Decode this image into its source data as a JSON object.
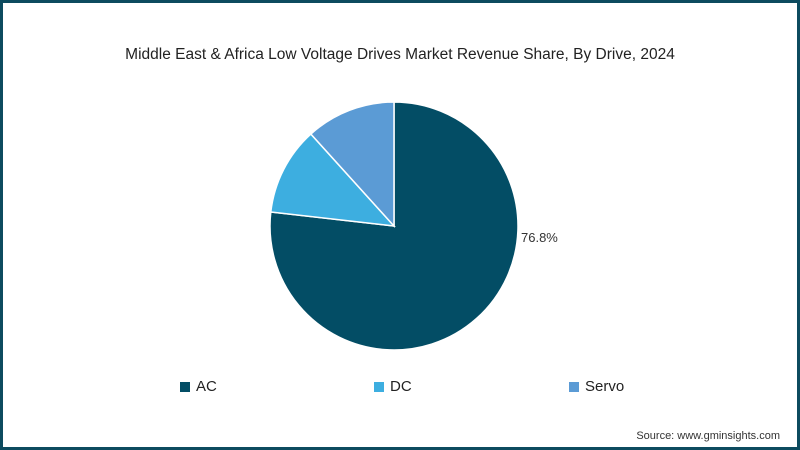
{
  "chart_data": {
    "type": "pie",
    "title": "Middle East & Africa Low Voltage Drives Market Revenue Share, By Drive, 2024",
    "categories": [
      "AC",
      "DC",
      "Servo"
    ],
    "values": [
      76.8,
      11.5,
      11.7
    ],
    "colors": [
      "#034d65",
      "#3daee0",
      "#5b9bd5"
    ],
    "data_labels": {
      "AC": "76.8%"
    },
    "legend_position": "bottom",
    "source": "Source: www.gminsights.com"
  },
  "title": "Middle East & Africa Low Voltage Drives Market Revenue Share, By Drive, 2024",
  "label_ac": "76.8%",
  "legend": [
    {
      "label": "AC",
      "color": "#034d65"
    },
    {
      "label": "DC",
      "color": "#3daee0"
    },
    {
      "label": "Servo",
      "color": "#5b9bd5"
    }
  ],
  "source": "Source: www.gminsights.com"
}
